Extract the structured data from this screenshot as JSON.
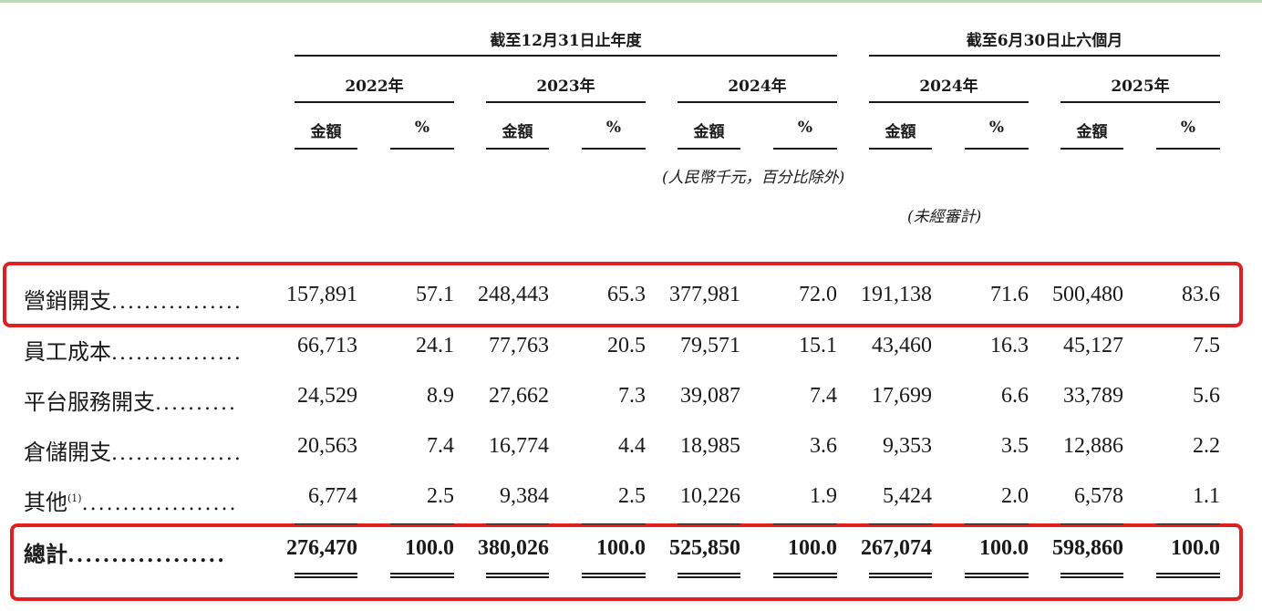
{
  "header": {
    "group1": "截至12月31日止年度",
    "group2": "截至6月30日止六個月",
    "years": [
      "2022年",
      "2023年",
      "2024年",
      "2024年",
      "2025年"
    ],
    "amount_label": "金額",
    "pct_label": "%",
    "unit_note": "(人民幣千元，百分比除外)",
    "unaudited_note": "(未經審計)"
  },
  "rows": [
    {
      "label": "營銷開支",
      "sup": "",
      "dots": "................",
      "values": [
        "157,891",
        "57.1",
        "248,443",
        "65.3",
        "377,981",
        "72.0",
        "191,138",
        "71.6",
        "500,480",
        "83.6"
      ]
    },
    {
      "label": "員工成本",
      "sup": "",
      "dots": "................",
      "values": [
        "66,713",
        "24.1",
        "77,763",
        "20.5",
        "79,571",
        "15.1",
        "43,460",
        "16.3",
        "45,127",
        "7.5"
      ]
    },
    {
      "label": "平台服務開支",
      "sup": "",
      "dots": "..........",
      "values": [
        "24,529",
        "8.9",
        "27,662",
        "7.3",
        "39,087",
        "7.4",
        "17,699",
        "6.6",
        "33,789",
        "5.6"
      ]
    },
    {
      "label": "倉儲開支",
      "sup": "",
      "dots": "................",
      "values": [
        "20,563",
        "7.4",
        "16,774",
        "4.4",
        "18,985",
        "3.6",
        "9,353",
        "3.5",
        "12,886",
        "2.2"
      ]
    },
    {
      "label": "其他",
      "sup": "(1)",
      "dots": "...................",
      "values": [
        "6,774",
        "2.5",
        "9,384",
        "2.5",
        "10,226",
        "1.9",
        "5,424",
        "2.0",
        "6,578",
        "1.1"
      ]
    },
    {
      "label": "總計",
      "sup": "",
      "dots": "..................",
      "values": [
        "276,470",
        "100.0",
        "380,026",
        "100.0",
        "525,850",
        "100.0",
        "267,074",
        "100.0",
        "598,860",
        "100.0"
      ]
    }
  ],
  "colors": {
    "highlight": "#e02020",
    "text": "#1a1a1a"
  }
}
